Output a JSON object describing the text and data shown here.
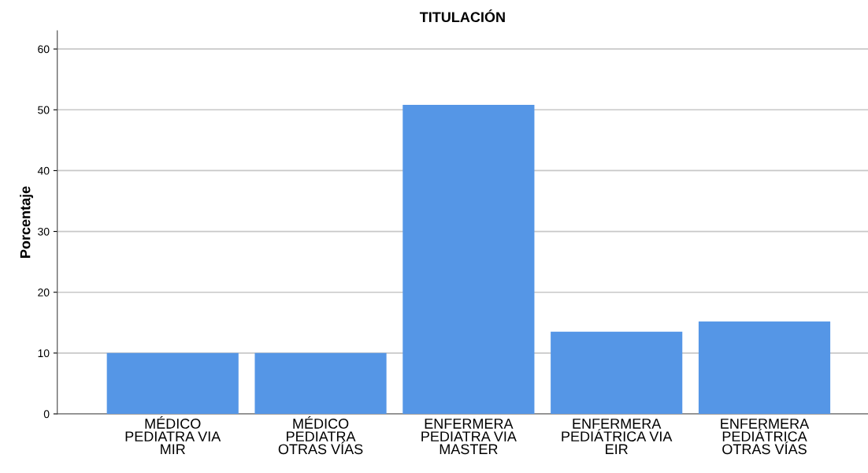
{
  "chart_data": {
    "type": "bar",
    "title": "TITULACIÓN",
    "ylabel": "Porcentaje",
    "categories": [
      "MÉDICO\nPEDIATRA VIA\nMIR",
      "MÉDICO\nPEDIATRA\nOTRAS VÍAS",
      "ENFERMERA\nPEDIATRA VIA\nMASTER",
      "ENFERMERA\nPEDIÁTRICA VIA\nEIR",
      "ENFERMERA\nPEDIÁTRICA\nOTRAS VÍAS"
    ],
    "values": [
      10.0,
      10.0,
      50.8,
      13.5,
      15.2
    ],
    "color": "#5596e6",
    "ylim": [
      0,
      63
    ],
    "yticks": [
      0,
      10,
      20,
      30,
      40,
      50,
      60
    ],
    "grid": "y"
  }
}
